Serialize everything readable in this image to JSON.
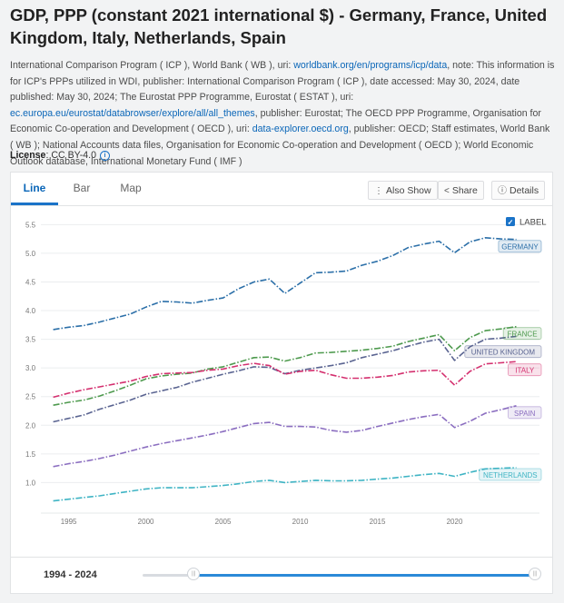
{
  "page": {
    "title": "GDP, PPP (constant 2021 international $) - Germany, France, United Kingdom, Italy, Netherlands, Spain",
    "source_segments": [
      {
        "text": "International Comparison Program ( ICP ), World Bank ( WB ), uri: "
      },
      {
        "text": "worldbank.org/en/programs/icp/data",
        "link": true
      },
      {
        "text": ", note: This information is for ICP's PPPs utilized in WDI, publisher: International Comparison Program ( ICP ), date accessed: May 30, 2024, date published: May 30, 2024; The Eurostat PPP Programme, Eurostat ( ESTAT ), uri: "
      },
      {
        "text": "ec.europa.eu/eurostat/databrowser/explore/all/all_themes",
        "link": true
      },
      {
        "text": ", publisher: Eurostat; The OECD PPP Programme, Organisation for Economic Co-operation and Development ( OECD ), uri: "
      },
      {
        "text": "data-explorer.oecd.org",
        "link": true
      },
      {
        "text": ", publisher: OECD; Staff estimates, World Bank ( WB ); National Accounts data files, Organisation for Economic Co-operation and Development ( OECD ); World Economic Outlook database, International Monetary Fund ( IMF )"
      }
    ],
    "license_label": "License",
    "license_value": ": CC BY-4.0",
    "info_glyph": "i"
  },
  "tabs": [
    {
      "label": "Line",
      "active": true
    },
    {
      "label": "Bar",
      "active": false
    },
    {
      "label": "Map",
      "active": false
    }
  ],
  "toolbar": {
    "also_show": "Also Show",
    "share": "Share",
    "details": "Details"
  },
  "label_toggle": {
    "label": "LABEL",
    "checked": true,
    "check_glyph": "✓"
  },
  "range": {
    "label": "1994 - 2024",
    "start_fraction": 0.13,
    "end_fraction": 1.0
  },
  "chart_data": {
    "type": "line",
    "title": "GDP, PPP (constant 2021 international $)",
    "xlabel": "",
    "ylabel": "",
    "xlim": [
      1993.2,
      2025.5
    ],
    "ylim": [
      0.5,
      5.6
    ],
    "yticks": [
      "1.0",
      "1.5",
      "2.0",
      "2.5",
      "3.0",
      "3.5",
      "4.0",
      "4.5",
      "5.0",
      "5.5"
    ],
    "xticks": [
      "1995",
      "2000",
      "2005",
      "2010",
      "2015",
      "2020"
    ],
    "x": [
      1994,
      1995,
      1996,
      1997,
      1998,
      1999,
      2000,
      2001,
      2002,
      2003,
      2004,
      2005,
      2006,
      2007,
      2008,
      2009,
      2010,
      2011,
      2012,
      2013,
      2014,
      2015,
      2016,
      2017,
      2018,
      2019,
      2020,
      2021,
      2022,
      2023,
      2024
    ],
    "series": [
      {
        "name": "GERMANY",
        "color": "#2b6fa8",
        "values": [
          3.67,
          3.71,
          3.74,
          3.8,
          3.87,
          3.94,
          4.06,
          4.16,
          4.15,
          4.13,
          4.18,
          4.22,
          4.38,
          4.5,
          4.55,
          4.3,
          4.48,
          4.66,
          4.67,
          4.69,
          4.79,
          4.86,
          4.96,
          5.1,
          5.16,
          5.21,
          5.01,
          5.2,
          5.27,
          5.25,
          5.24
        ]
      },
      {
        "name": "FRANCE",
        "color": "#4e9a4e",
        "values": [
          2.35,
          2.4,
          2.44,
          2.51,
          2.6,
          2.7,
          2.81,
          2.86,
          2.89,
          2.91,
          2.98,
          3.02,
          3.1,
          3.18,
          3.19,
          3.12,
          3.18,
          3.26,
          3.27,
          3.29,
          3.31,
          3.34,
          3.38,
          3.46,
          3.52,
          3.58,
          3.3,
          3.53,
          3.65,
          3.68,
          3.72
        ]
      },
      {
        "name": "UNITED KINGDOM",
        "color": "#5a6491",
        "values": [
          2.06,
          2.12,
          2.18,
          2.28,
          2.36,
          2.44,
          2.54,
          2.6,
          2.66,
          2.75,
          2.82,
          2.89,
          2.95,
          3.02,
          3.01,
          2.9,
          2.96,
          3.0,
          3.04,
          3.09,
          3.18,
          3.24,
          3.3,
          3.38,
          3.45,
          3.5,
          3.13,
          3.37,
          3.5,
          3.52,
          3.55
        ]
      },
      {
        "name": "ITALY",
        "color": "#d4306f",
        "values": [
          2.49,
          2.56,
          2.62,
          2.67,
          2.72,
          2.77,
          2.85,
          2.9,
          2.91,
          2.92,
          2.96,
          2.98,
          3.04,
          3.08,
          3.04,
          2.89,
          2.94,
          2.96,
          2.88,
          2.82,
          2.82,
          2.84,
          2.87,
          2.93,
          2.95,
          2.96,
          2.7,
          2.94,
          3.07,
          3.09,
          3.11
        ]
      },
      {
        "name": "SPAIN",
        "color": "#8b6ec0",
        "values": [
          1.28,
          1.33,
          1.37,
          1.42,
          1.48,
          1.55,
          1.62,
          1.68,
          1.73,
          1.78,
          1.83,
          1.89,
          1.96,
          2.03,
          2.05,
          1.98,
          1.98,
          1.97,
          1.91,
          1.88,
          1.91,
          1.98,
          2.04,
          2.1,
          2.15,
          2.19,
          1.96,
          2.07,
          2.21,
          2.27,
          2.34
        ]
      },
      {
        "name": "NETHERLANDS",
        "color": "#3fb4c4",
        "values": [
          0.68,
          0.71,
          0.74,
          0.77,
          0.81,
          0.85,
          0.89,
          0.91,
          0.91,
          0.91,
          0.93,
          0.95,
          0.98,
          1.02,
          1.04,
          1.0,
          1.02,
          1.04,
          1.03,
          1.03,
          1.04,
          1.06,
          1.08,
          1.11,
          1.14,
          1.16,
          1.11,
          1.18,
          1.24,
          1.25,
          1.26
        ]
      }
    ]
  }
}
